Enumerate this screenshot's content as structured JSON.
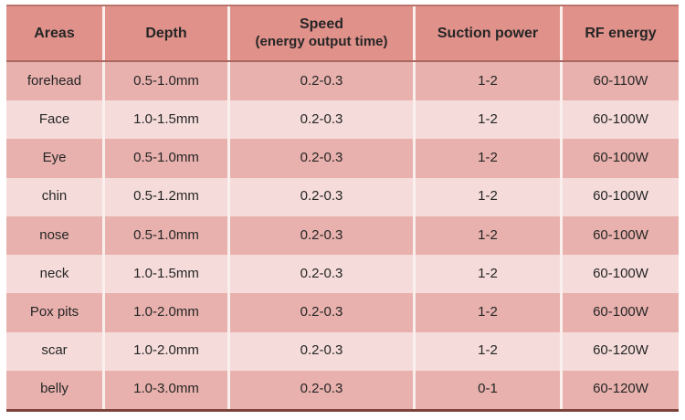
{
  "chart_data": {
    "type": "table",
    "columns": [
      {
        "line1": "Areas"
      },
      {
        "line1": "Depth"
      },
      {
        "line1": "Speed",
        "line2": "(energy output time)"
      },
      {
        "line1": "Suction power"
      },
      {
        "line1": "RF energy"
      }
    ],
    "rows": [
      {
        "area": "forehead",
        "depth": "0.5-1.0mm",
        "speed": "0.2-0.3",
        "suction_power": "1-2",
        "rf_energy": "60-110W"
      },
      {
        "area": "Face",
        "depth": "1.0-1.5mm",
        "speed": "0.2-0.3",
        "suction_power": "1-2",
        "rf_energy": "60-100W"
      },
      {
        "area": "Eye",
        "depth": "0.5-1.0mm",
        "speed": "0.2-0.3",
        "suction_power": "1-2",
        "rf_energy": "60-100W"
      },
      {
        "area": "chin",
        "depth": "0.5-1.2mm",
        "speed": "0.2-0.3",
        "suction_power": "1-2",
        "rf_energy": "60-100W"
      },
      {
        "area": "nose",
        "depth": "0.5-1.0mm",
        "speed": "0.2-0.3",
        "suction_power": "1-2",
        "rf_energy": "60-100W"
      },
      {
        "area": "neck",
        "depth": "1.0-1.5mm",
        "speed": "0.2-0.3",
        "suction_power": "1-2",
        "rf_energy": "60-100W"
      },
      {
        "area": "Pox pits",
        "depth": "1.0-2.0mm",
        "speed": "0.2-0.3",
        "suction_power": "1-2",
        "rf_energy": "60-100W"
      },
      {
        "area": "scar",
        "depth": "1.0-2.0mm",
        "speed": "0.2-0.3",
        "suction_power": "1-2",
        "rf_energy": "60-120W"
      },
      {
        "area": "belly",
        "depth": "1.0-3.0mm",
        "speed": "0.2-0.3",
        "suction_power": "0-1",
        "rf_energy": "60-120W"
      }
    ]
  },
  "colors": {
    "page_bg": "#ffffff",
    "header_bg": "#df918a",
    "row_odd_bg": "#e8b1ad",
    "row_even_bg": "#f5dcda",
    "divider": "#f9efed",
    "border_top": "#b9736c",
    "border_header_bottom": "#aa6660",
    "border_bottom": "#7d443e",
    "text": "#262626"
  }
}
